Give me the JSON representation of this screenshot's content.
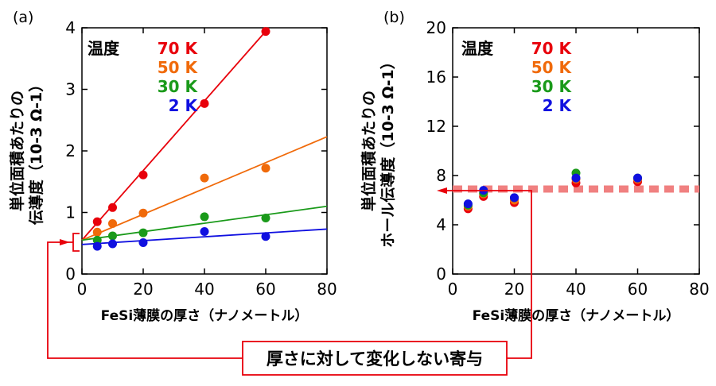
{
  "colors": {
    "series_70K": "#e8000b",
    "series_50K": "#f06a0a",
    "series_30K": "#1a9a1a",
    "series_2K": "#1010e0",
    "annotation": "#e8000b",
    "dashed_line": "#f08080"
  },
  "annotation": {
    "text": "厚さに対して変化しない寄与"
  },
  "chart_data": [
    {
      "panel": "(a)",
      "type": "scatter",
      "xlabel": "FeSi薄膜の厚さ（ナノメートル）",
      "ylabel_lines": [
        "単位面積あたりの",
        "伝導度（10-3 Ω-1）"
      ],
      "xlim": [
        0,
        80
      ],
      "ylim": [
        0,
        4
      ],
      "xticks": [
        "0",
        "20",
        "40",
        "60",
        "80"
      ],
      "yticks": [
        "0",
        "1",
        "2",
        "3",
        "4"
      ],
      "legend": {
        "title": "温度",
        "placement": "top-left"
      },
      "series": [
        {
          "name": "70 K",
          "color_key": "series_70K",
          "points": [
            [
              5,
              0.85
            ],
            [
              10,
              1.08
            ],
            [
              20,
              1.61
            ],
            [
              40,
              2.77
            ],
            [
              60,
              3.94
            ]
          ],
          "fit_line": [
            [
              0,
              0.55
            ],
            [
              61,
              4.0
            ]
          ]
        },
        {
          "name": "50 K",
          "color_key": "series_50K",
          "points": [
            [
              5,
              0.68
            ],
            [
              10,
              0.82
            ],
            [
              20,
              0.99
            ],
            [
              40,
              1.56
            ],
            [
              60,
              1.72
            ]
          ],
          "fit_line": [
            [
              0,
              0.55
            ],
            [
              80,
              2.23
            ]
          ]
        },
        {
          "name": "30 K",
          "color_key": "series_30K",
          "points": [
            [
              5,
              0.55
            ],
            [
              10,
              0.62
            ],
            [
              20,
              0.67
            ],
            [
              40,
              0.93
            ],
            [
              60,
              0.91
            ]
          ],
          "fit_line": [
            [
              0,
              0.55
            ],
            [
              80,
              1.1
            ]
          ]
        },
        {
          "name": "2 K",
          "color_key": "series_2K",
          "points": [
            [
              5,
              0.45
            ],
            [
              10,
              0.49
            ],
            [
              20,
              0.51
            ],
            [
              40,
              0.69
            ],
            [
              60,
              0.61
            ]
          ],
          "fit_line": [
            [
              0,
              0.48
            ],
            [
              80,
              0.73
            ]
          ]
        }
      ]
    },
    {
      "panel": "(b)",
      "type": "scatter",
      "xlabel": "FeSi薄膜の厚さ（ナノメートル）",
      "ylabel_lines": [
        "単位面積あたりの",
        "ホール伝導度（10-3 Ω-1）"
      ],
      "xlim": [
        0,
        80
      ],
      "ylim": [
        0,
        20
      ],
      "xticks": [
        "0",
        "20",
        "40",
        "60",
        "80"
      ],
      "yticks": [
        "0",
        "4",
        "8",
        "12",
        "16",
        "20"
      ],
      "legend": {
        "title": "温度",
        "placement": "top-left"
      },
      "reference_line": {
        "y": 6.9,
        "style": "dashed"
      },
      "series": [
        {
          "name": "70 K",
          "color_key": "series_70K",
          "points": [
            [
              5,
              5.3
            ],
            [
              10,
              6.3
            ],
            [
              20,
              5.8
            ],
            [
              40,
              7.4
            ],
            [
              60,
              7.5
            ]
          ]
        },
        {
          "name": "50 K",
          "color_key": "series_50K",
          "points": [
            [
              5,
              5.5
            ],
            [
              10,
              6.5
            ],
            [
              20,
              6.0
            ],
            [
              40,
              7.7
            ],
            [
              60,
              7.7
            ]
          ]
        },
        {
          "name": "30 K",
          "color_key": "series_30K",
          "points": [
            [
              5,
              5.6
            ],
            [
              10,
              6.6
            ],
            [
              20,
              6.2
            ],
            [
              40,
              8.2
            ],
            [
              60,
              7.8
            ]
          ]
        },
        {
          "name": "2 K",
          "color_key": "series_2K",
          "points": [
            [
              5,
              5.7
            ],
            [
              10,
              6.8
            ],
            [
              20,
              6.2
            ],
            [
              40,
              7.8
            ],
            [
              60,
              7.8
            ]
          ]
        }
      ]
    }
  ]
}
